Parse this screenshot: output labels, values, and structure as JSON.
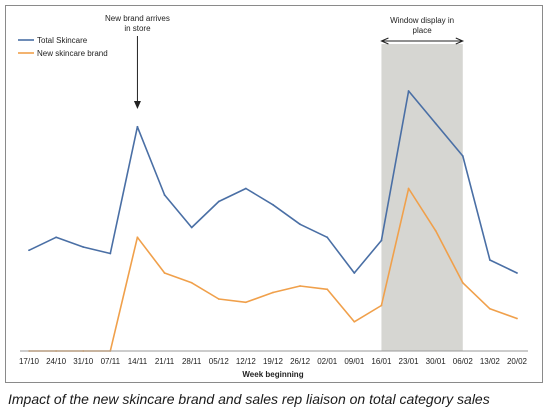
{
  "caption": "Impact of the new skincare brand and sales rep liaison on total category sales",
  "chart_data": {
    "type": "line",
    "xlabel": "Week beginning",
    "ylabel": "",
    "ylim": [
      0,
      100
    ],
    "categories": [
      "17/10",
      "24/10",
      "31/10",
      "07/11",
      "14/11",
      "21/11",
      "28/11",
      "05/12",
      "12/12",
      "19/12",
      "26/12",
      "02/01",
      "09/01",
      "16/01",
      "23/01",
      "30/01",
      "06/02",
      "13/02",
      "20/02"
    ],
    "series": [
      {
        "name": "Total Skincare",
        "color": "#4a6fa5",
        "values": [
          31,
          35,
          32,
          30,
          69,
          48,
          38,
          46,
          50,
          45,
          39,
          35,
          24,
          34,
          80,
          70,
          60,
          28,
          24
        ]
      },
      {
        "name": "New skincare brand",
        "color": "#f0a04b",
        "values": [
          0,
          0,
          0,
          0,
          35,
          24,
          21,
          16,
          15,
          18,
          20,
          19,
          9,
          14,
          50,
          37,
          21,
          13,
          10
        ]
      }
    ],
    "legend": "top-left",
    "grid": false,
    "annotations": [
      {
        "text": [
          "New brand arrives",
          "in store"
        ],
        "x": "14/11",
        "type": "arrow"
      },
      {
        "text": [
          "Window display in",
          "place"
        ],
        "from": "16/01",
        "to": "06/02",
        "type": "shaded-range",
        "color": "#d6d6d2"
      }
    ]
  }
}
